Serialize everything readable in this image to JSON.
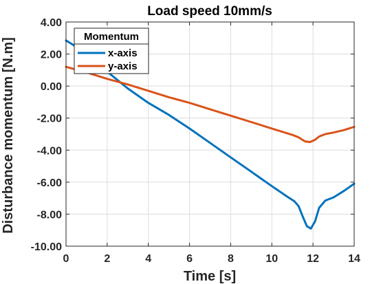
{
  "chart_data": {
    "type": "line",
    "title": "Load speed 10mm/s",
    "xlabel": "Time [s]",
    "ylabel": "Disturbance momentum [N.m]",
    "xlim": [
      0,
      14
    ],
    "ylim": [
      -10,
      4
    ],
    "xticks": [
      0,
      2,
      4,
      6,
      8,
      10,
      12,
      14
    ],
    "xtick_labels": [
      "0",
      "2",
      "4",
      "6",
      "8",
      "10",
      "12",
      "14"
    ],
    "yticks": [
      4,
      2,
      0,
      -2,
      -4,
      -6,
      -8,
      -10
    ],
    "ytick_labels": [
      "4.00",
      "2.00",
      "0.00",
      "-2.00",
      "-4.00",
      "-6.00",
      "-8.00",
      "-10.00"
    ],
    "grid": true,
    "legend": {
      "title": "Momentum",
      "placement": "top-left"
    },
    "series": [
      {
        "name": "x-axis",
        "color": "#0072bd",
        "x": [
          0,
          0.5,
          1.0,
          2.0,
          3.0,
          4.0,
          5.0,
          6.0,
          7.0,
          8.0,
          9.0,
          10.0,
          10.8,
          11.1,
          11.3,
          11.5,
          11.7,
          11.9,
          12.1,
          12.3,
          12.6,
          13.0,
          13.5,
          14.0
        ],
        "y": [
          2.85,
          2.45,
          1.9,
          0.9,
          -0.15,
          -1.05,
          -1.8,
          -2.65,
          -3.55,
          -4.45,
          -5.35,
          -6.25,
          -6.95,
          -7.2,
          -7.5,
          -8.15,
          -8.75,
          -8.9,
          -8.45,
          -7.6,
          -7.15,
          -6.95,
          -6.55,
          -6.1
        ]
      },
      {
        "name": "y-axis",
        "color": "#d95319",
        "x": [
          0,
          1.0,
          2.0,
          3.0,
          4.0,
          5.0,
          6.0,
          7.0,
          8.0,
          9.0,
          10.0,
          11.0,
          11.3,
          11.6,
          11.85,
          12.1,
          12.3,
          12.6,
          13.0,
          13.5,
          14.0
        ],
        "y": [
          1.2,
          0.85,
          0.45,
          0.1,
          -0.3,
          -0.7,
          -1.05,
          -1.45,
          -1.85,
          -2.25,
          -2.65,
          -3.05,
          -3.2,
          -3.45,
          -3.5,
          -3.35,
          -3.15,
          -3.0,
          -2.9,
          -2.75,
          -2.55
        ]
      }
    ]
  }
}
